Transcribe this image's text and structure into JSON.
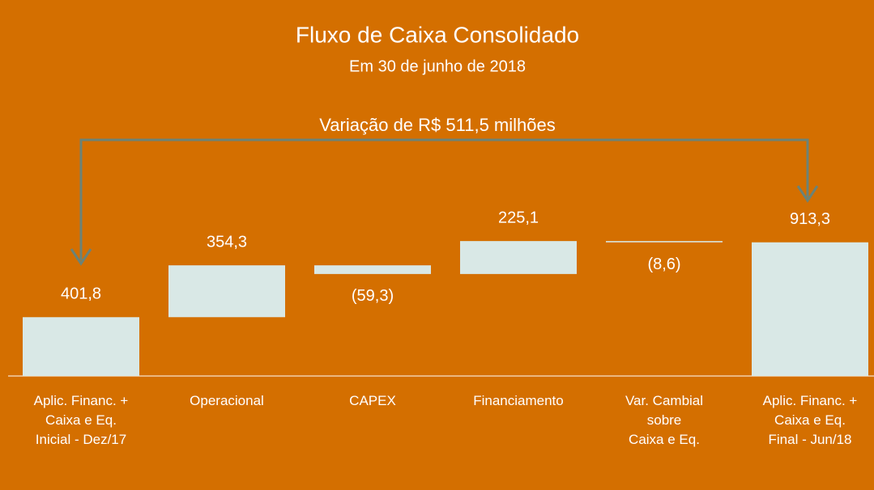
{
  "chart_data": {
    "type": "waterfall",
    "title": "Fluxo de Caixa Consolidado",
    "subtitle": "Em 30 de junho  de 2018",
    "annotation": "Variação de R$ 511,5 milhões",
    "categories": [
      "Aplic. Financ. +\nCaixa e Eq.\nInicial - Dez/17",
      "Operacional",
      "CAPEX",
      "Financiamento",
      "Var. Cambial\nsobre\nCaixa e Eq.",
      "Aplic. Financ. +\nCaixa e Eq.\nFinal - Jun/18"
    ],
    "measure": [
      "absolute",
      "relative",
      "relative",
      "relative",
      "relative",
      "total"
    ],
    "values": [
      401.8,
      354.3,
      -59.3,
      225.1,
      -8.6,
      913.3
    ],
    "value_labels": [
      "401,8",
      "354,3",
      "(59,3)",
      "225,1",
      "(8,6)",
      "913,3"
    ],
    "color": "#d9e8e6",
    "ylim": [
      0,
      1000
    ]
  }
}
